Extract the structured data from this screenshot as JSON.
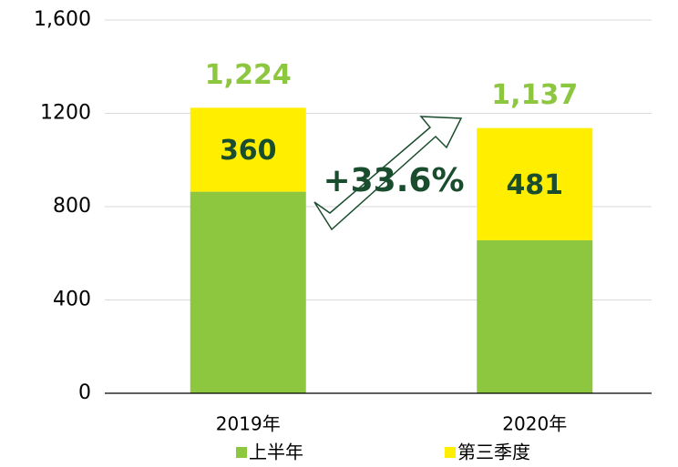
{
  "chart_data": {
    "type": "stacked_bar",
    "categories": [
      "2019年",
      "2020年"
    ],
    "series": [
      {
        "name": "上半年",
        "color": "#8dc63f",
        "values": [
          864,
          656
        ]
      },
      {
        "name": "第三季度",
        "color": "#ffee00",
        "values": [
          360,
          481
        ],
        "show_labels": true
      }
    ],
    "totals": [
      1224,
      1137
    ],
    "total_labels": [
      "1,224",
      "1,137"
    ],
    "annotation": "+33.6%",
    "ylim": [
      0,
      1600
    ],
    "yticks": [
      0,
      400,
      800,
      1200,
      {
        "value": 1600,
        "label": "1,600"
      }
    ],
    "grid": true,
    "legend": "bottom"
  }
}
